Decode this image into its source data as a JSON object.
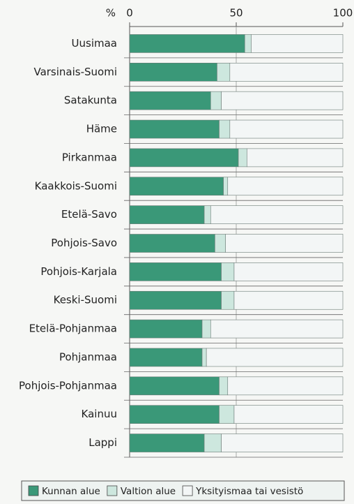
{
  "chart_data": {
    "type": "stacked-barh",
    "axis_unit": "%",
    "categories": [
      "Uusimaa",
      "Varsinais-Suomi",
      "Satakunta",
      "Häme",
      "Pirkanmaa",
      "Kaakkois-Suomi",
      "Etelä-Savo",
      "Pohjois-Savo",
      "Pohjois-Karjala",
      "Keski-Suomi",
      "Etelä-Pohjanmaa",
      "Pohjanmaa",
      "Pohjois-Pohjanmaa",
      "Kainuu",
      "Lappi"
    ],
    "series": [
      {
        "name": "Kunnan alue",
        "color": "#3a9878",
        "values": [
          54,
          41,
          38,
          42,
          51,
          44,
          35,
          40,
          43,
          43,
          34,
          34,
          42,
          42,
          35
        ]
      },
      {
        "name": "Valtion alue",
        "color": "#cde7de",
        "values": [
          3,
          6,
          5,
          5,
          4,
          2,
          3,
          5,
          6,
          6,
          4,
          2,
          4,
          7,
          8
        ]
      },
      {
        "name": "Yksityismaa tai vesistö",
        "color": "#f3f6f6",
        "values": [
          43,
          53,
          57,
          53,
          45,
          54,
          62,
          55,
          51,
          51,
          62,
          64,
          54,
          51,
          57
        ]
      }
    ],
    "xlim": [
      0,
      100
    ],
    "xticks": [
      0,
      50,
      100
    ],
    "grid": true,
    "legend": "bottom"
  }
}
